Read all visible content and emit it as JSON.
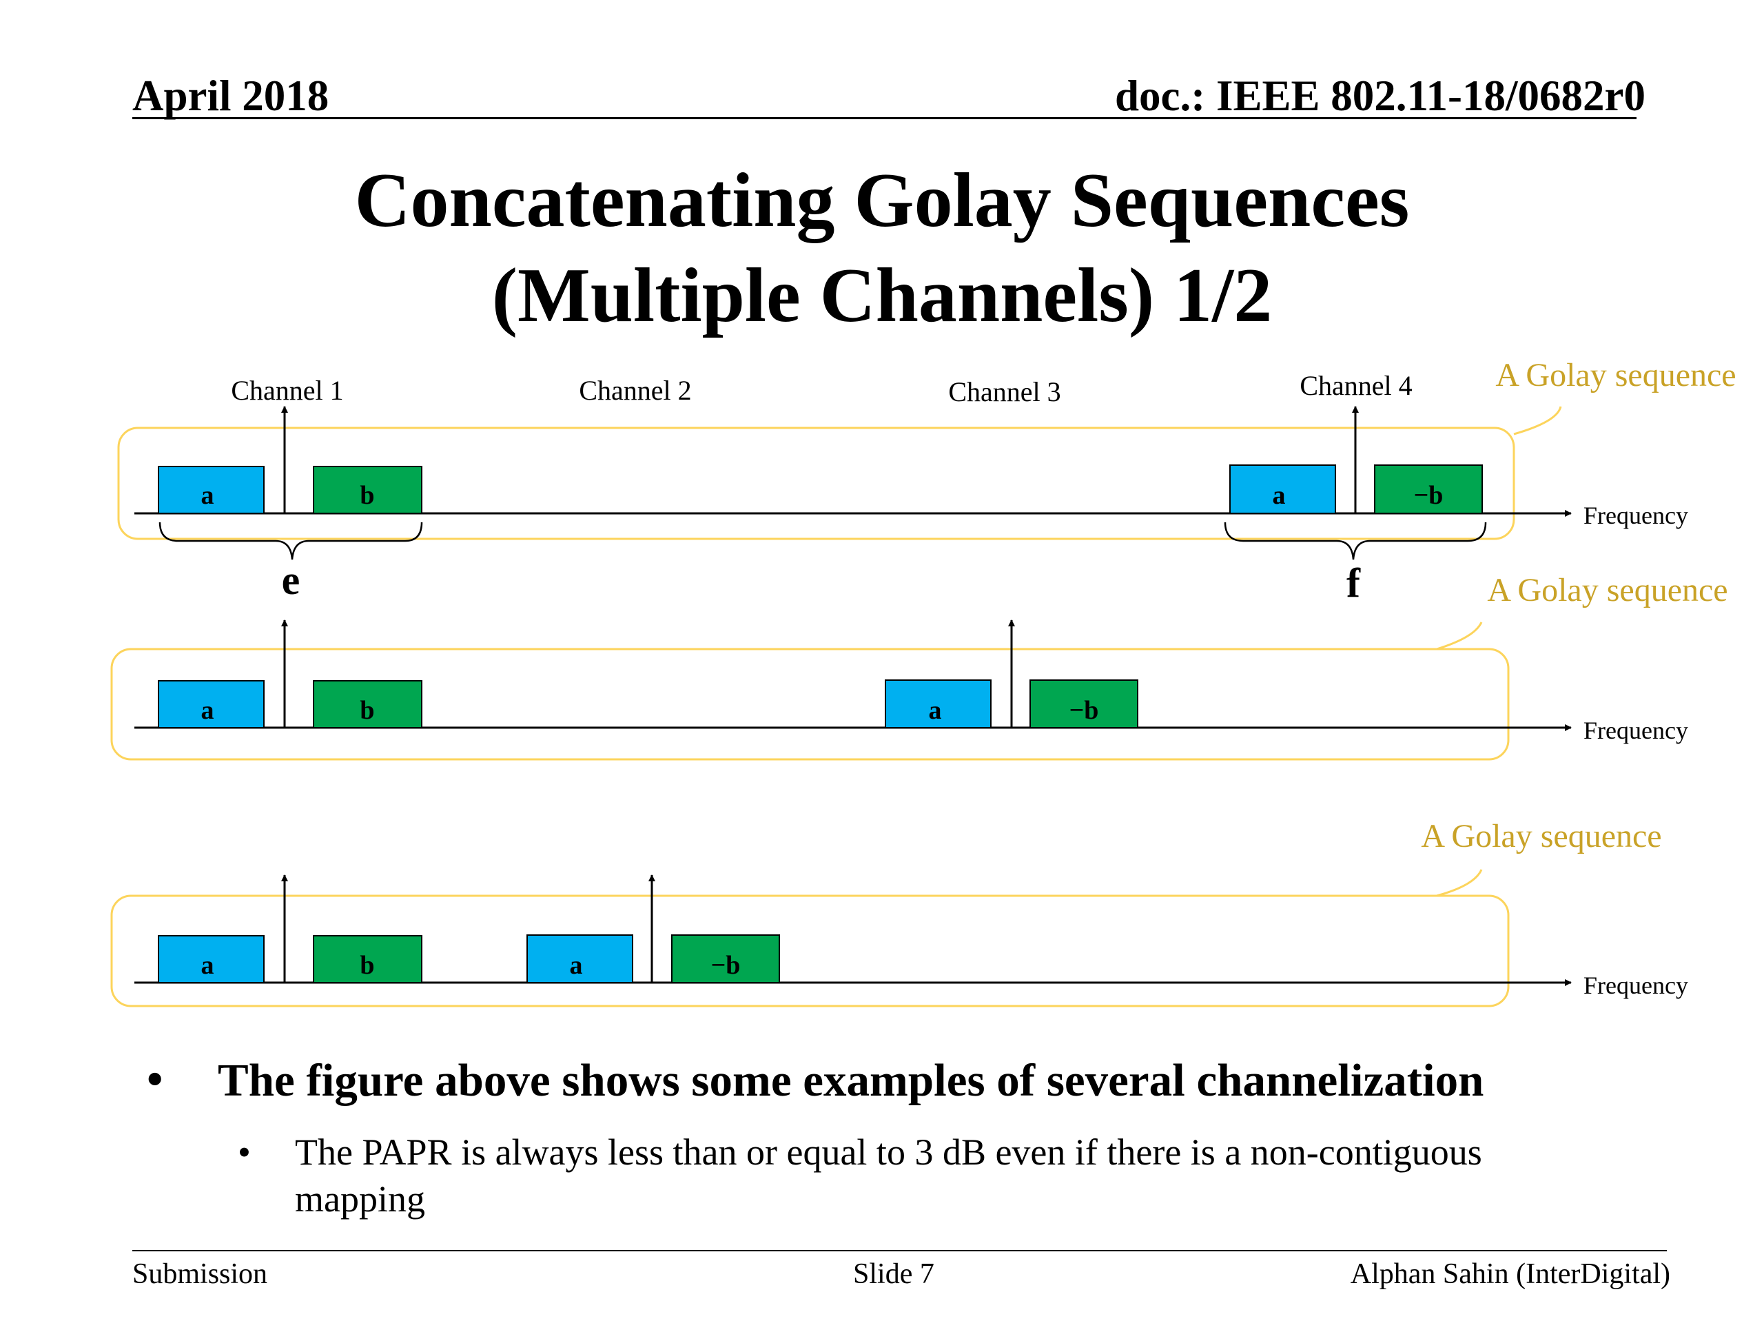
{
  "header": {
    "date": "April 2018",
    "doc": "doc.: IEEE 802.11-18/0682r0"
  },
  "title": {
    "line1": "Concatenating Golay Sequences",
    "line2": "(Multiple Channels) 1/2"
  },
  "diagram": {
    "channel_labels": [
      "Channel 1",
      "Channel 2",
      "Channel 3",
      "Channel 4"
    ],
    "golay_label": "A Golay sequence",
    "frequency_label": "Frequency",
    "brace_labels": [
      "e",
      "f"
    ],
    "block_labels": {
      "a": "a",
      "b": "b",
      "neg_b": "−b"
    },
    "colors": {
      "a_block": "#00b0f0",
      "b_block": "#00a650",
      "golay": "#c9a227",
      "box_border": "#fcd45c"
    }
  },
  "bullets": {
    "main": "The figure above shows some examples of several channelization",
    "sub": "The PAPR is always less than or equal to 3 dB even if there is a non-contiguous mapping"
  },
  "footer": {
    "left": "Submission",
    "center": "Slide 7",
    "right": "Alphan Sahin (InterDigital)"
  }
}
